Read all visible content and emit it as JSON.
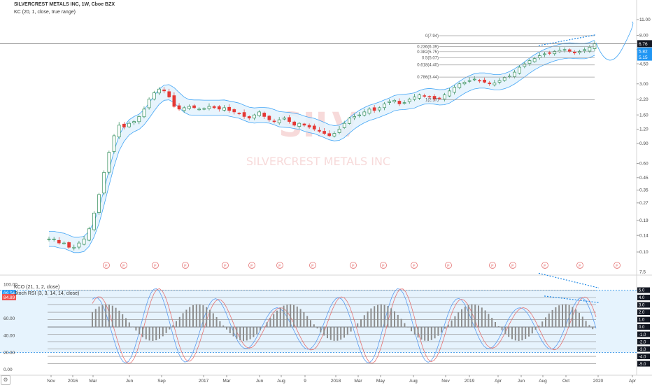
{
  "header": {
    "title": "SILVERCREST METALS INC, 1W, Cboe BZX",
    "indicator": "KC (20, 1, close, true range)",
    "osc_indicator_1": "KCO (21, 1, 2, close)",
    "osc_indicator_2": "Stoch RSI (3, 3, 14, 14, close)"
  },
  "colors": {
    "up": "#2e8b57",
    "down": "#e53935",
    "channel": "#42a5f5",
    "channel_fill": "#e3f2fd",
    "fib": "#9e9e9e",
    "trend": "#1e88e5",
    "label_dark": "#131722",
    "label_blue": "#2196f3",
    "label_red": "#ef5350",
    "earnings": "#e57373"
  },
  "chart_data": [
    {
      "type": "candlestick",
      "name": "price",
      "y_scale": "log",
      "y_ticks": [
        "11.00",
        "8.00",
        "6.00",
        "4.50",
        "3.00",
        "2.20",
        "1.60",
        "1.20",
        "0.90",
        "0.60",
        "0.45",
        "0.35",
        "0.27",
        "0.19",
        "0.14",
        "0.10"
      ],
      "x_ticks": [
        "Nov",
        "2016",
        "Mar",
        "Jun",
        "Sep",
        "2017",
        "Mar",
        "Jun",
        "Aug",
        "9",
        "2018",
        "Mar",
        "May",
        "Aug",
        "Nov",
        "2019",
        "Apr",
        "Jun",
        "Aug",
        "Oct",
        "2020",
        "Apr"
      ],
      "series_close": [
        0.13,
        0.13,
        0.12,
        0.12,
        0.11,
        0.11,
        0.12,
        0.13,
        0.16,
        0.22,
        0.32,
        0.5,
        0.75,
        1.05,
        1.3,
        1.25,
        1.35,
        1.4,
        1.55,
        1.8,
        2.2,
        2.5,
        2.7,
        2.6,
        2.3,
        1.9,
        1.8,
        1.85,
        1.9,
        1.85,
        1.8,
        1.82,
        1.9,
        1.85,
        1.8,
        1.85,
        1.75,
        1.7,
        1.65,
        1.55,
        1.5,
        1.6,
        1.7,
        1.55,
        1.45,
        1.4,
        1.45,
        1.5,
        1.4,
        1.3,
        1.35,
        1.3,
        1.25,
        1.2,
        1.15,
        1.1,
        1.05,
        1.1,
        1.2,
        1.35,
        1.5,
        1.55,
        1.6,
        1.7,
        1.8,
        1.75,
        1.85,
        2.0,
        2.1,
        2.15,
        2.0,
        2.05,
        2.2,
        2.3,
        2.4,
        2.35,
        2.3,
        2.2,
        2.25,
        2.4,
        2.6,
        2.8,
        3.0,
        3.1,
        3.2,
        3.3,
        3.2,
        3.1,
        3.0,
        3.05,
        3.2,
        3.4,
        3.5,
        3.8,
        4.2,
        4.5,
        4.8,
        5.0,
        5.3,
        5.5,
        5.6,
        5.8,
        5.9,
        6.0,
        5.8,
        5.6,
        5.8,
        6.0,
        6.3,
        6.76
      ],
      "fib_levels": [
        {
          "label": "0(7.94)",
          "value": 7.94
        },
        {
          "label": "0.236(6.39)",
          "value": 6.39
        },
        {
          "label": "0.382(5.75)",
          "value": 5.75
        },
        {
          "label": "0.5(5.07)",
          "value": 5.07
        },
        {
          "label": "0.618(4.40)",
          "value": 4.4
        },
        {
          "label": "0.786(3.44)",
          "value": 3.44
        },
        {
          "label": "1(2.17)",
          "value": 2.17
        }
      ],
      "price_labels": [
        {
          "text": "6.76",
          "value": 6.76,
          "color": "dark"
        },
        {
          "text": "5.82",
          "value": 5.82,
          "color": "blue"
        },
        {
          "text": "5.15",
          "value": 5.15,
          "color": "blue"
        }
      ],
      "earnings_markers": [
        "E",
        "E",
        "E",
        "E",
        "E",
        "E",
        "E",
        "E",
        "E",
        "E",
        "E",
        "E",
        "E",
        "E",
        "E",
        "E",
        "E"
      ],
      "watermark_1": "SILV",
      "watermark_2": "SILVERCREST METALS INC"
    },
    {
      "type": "line",
      "name": "oscillator",
      "y_ticks_left": [
        "100.00",
        "60.00",
        "40.00",
        "20.00",
        "0.00"
      ],
      "y_labels_left": [
        {
          "text": "89.54",
          "value": 89.54,
          "color": "blue"
        },
        {
          "text": "84.89",
          "value": 84.89,
          "color": "red"
        }
      ],
      "y_ticks_right": [
        "7.5",
        "5.0",
        "4.0",
        "3.0",
        "2.0",
        "1.0",
        "0.0",
        "-1.0",
        "-2.0",
        "-3.0",
        "-4.0",
        "-5.0"
      ],
      "x_ticks": [
        "Nov",
        "2016",
        "Mar",
        "Jun",
        "Sep",
        "2017",
        "Mar",
        "Jun",
        "Aug",
        "9",
        "2018",
        "Mar",
        "May",
        "Aug",
        "Nov",
        "2019",
        "Apr",
        "Jun",
        "Aug",
        "Oct",
        "2020",
        "Apr"
      ]
    }
  ]
}
